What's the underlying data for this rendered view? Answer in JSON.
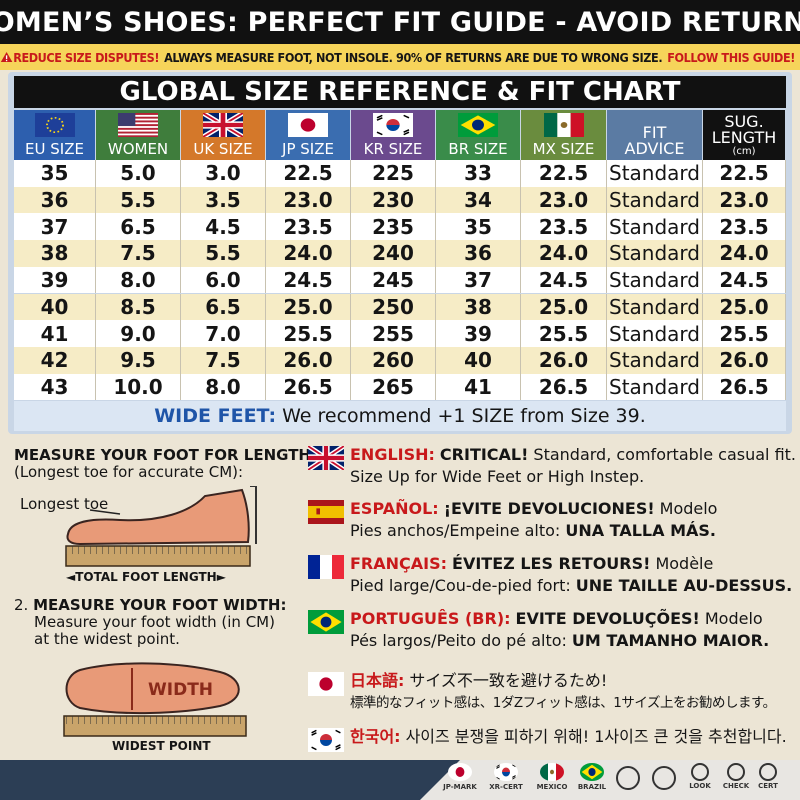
{
  "header": {
    "title": "WOMEN’S SHOES: PERFECT FIT GUIDE - AVOID RETURNS!"
  },
  "banner": {
    "alert": "REDUCE SIZE DISPUTES!",
    "text": "ALWAYS MEASURE FOOT, NOT INSOLE. 90% OF RETURNS ARE DUE TO WRONG SIZE.",
    "cta": "FOLLOW THIS GUIDE!"
  },
  "table": {
    "title": "GLOBAL SIZE REFERENCE & FIT CHART",
    "columns": [
      "EU SIZE",
      "WOMEN",
      "UK SIZE",
      "JP SIZE",
      "KR SIZE",
      "BR SIZE",
      "MX SIZE",
      "FIT ADVICE",
      "SUG. LENGTH"
    ],
    "length_unit": "(cm)",
    "rows": [
      [
        "35",
        "5.0",
        "3.0",
        "22.5",
        "225",
        "33",
        "22.5",
        "Standard",
        "22.5"
      ],
      [
        "36",
        "5.5",
        "3.5",
        "23.0",
        "230",
        "34",
        "23.0",
        "Standard",
        "23.0"
      ],
      [
        "37",
        "6.5",
        "4.5",
        "23.5",
        "235",
        "35",
        "23.5",
        "Standard",
        "23.5"
      ],
      [
        "38",
        "7.5",
        "5.5",
        "24.0",
        "240",
        "36",
        "24.0",
        "Standard",
        "24.0"
      ],
      [
        "39",
        "8.0",
        "6.0",
        "24.5",
        "245",
        "37",
        "24.5",
        "Standard",
        "24.5"
      ],
      [
        "40",
        "8.5",
        "6.5",
        "25.0",
        "250",
        "38",
        "25.0",
        "Standard",
        "25.0"
      ],
      [
        "41",
        "9.0",
        "7.0",
        "25.5",
        "255",
        "39",
        "25.5",
        "Standard",
        "25.5"
      ],
      [
        "42",
        "9.5",
        "7.5",
        "26.0",
        "260",
        "40",
        "26.0",
        "Standard",
        "26.0"
      ],
      [
        "43",
        "10.0",
        "8.0",
        "26.5",
        "265",
        "41",
        "26.5",
        "Standard",
        "26.5"
      ]
    ],
    "note_label": "WIDE FEET:",
    "note_text": "We recommend +1 SIZE from Size 39."
  },
  "measure": {
    "length_heading": "MEASURE YOUR FOOT FOR LENGTH",
    "length_sub": "(Longest toe for accurate CM):",
    "longest_toe": "Longest toe",
    "total_length": "TOTAL FOOT LENGTH",
    "width_number": "2.",
    "width_heading": "MEASURE YOUR FOOT WIDTH:",
    "width_sub": "Measure your foot width (in CM) at the widest point.",
    "width_label": "WIDTH",
    "widest_point": "WIDEST POINT"
  },
  "languages": [
    {
      "label": "ENGLISH:",
      "headline": "CRITICAL!",
      "line1_rest": "Standard, comfortable casual fit.",
      "line2": "Size Up for Wide Feet or High Instep."
    },
    {
      "label": "ESPAÑOL:",
      "headline": "¡EVITE DEVOLUCIONES!",
      "line1_rest": "Modelo",
      "line2": "Pies anchos/Empeine alto:",
      "line2_bold": "UNA TALLA MÁS."
    },
    {
      "label": "FRANÇAIS:",
      "headline": "ÉVITEZ LES RETOURS!",
      "line1_rest": "Modèle",
      "line2": "Pied large/Cou-de-pied fort:",
      "line2_bold": "UNE TAILLE AU-DESSUS."
    },
    {
      "label": "PORTUGUÊS (BR):",
      "headline": "EVITE DEVOLUÇÕES!",
      "line1_rest": "Modelo",
      "line2": "Pés largos/Peito do pé alto:",
      "line2_bold": "UM TAMANHO MAIOR."
    },
    {
      "label": "日本語:",
      "line1_rest": "サイズ不一致を避けるため!",
      "line2": "標準的なフィット感は、1ダZフィット感は、1サイズ上をお勧めします。"
    },
    {
      "label": "한국어:",
      "line1_rest": "사이즈 분쟁을 피하기 위해! 1사이즈 큰 것을 추천합니다."
    }
  ],
  "footer": {
    "badges": [
      "JP-MARK",
      "XR-CERT",
      "MEXICO",
      "BRAZIL",
      "LOOK",
      "CHECK",
      "CERT"
    ]
  }
}
